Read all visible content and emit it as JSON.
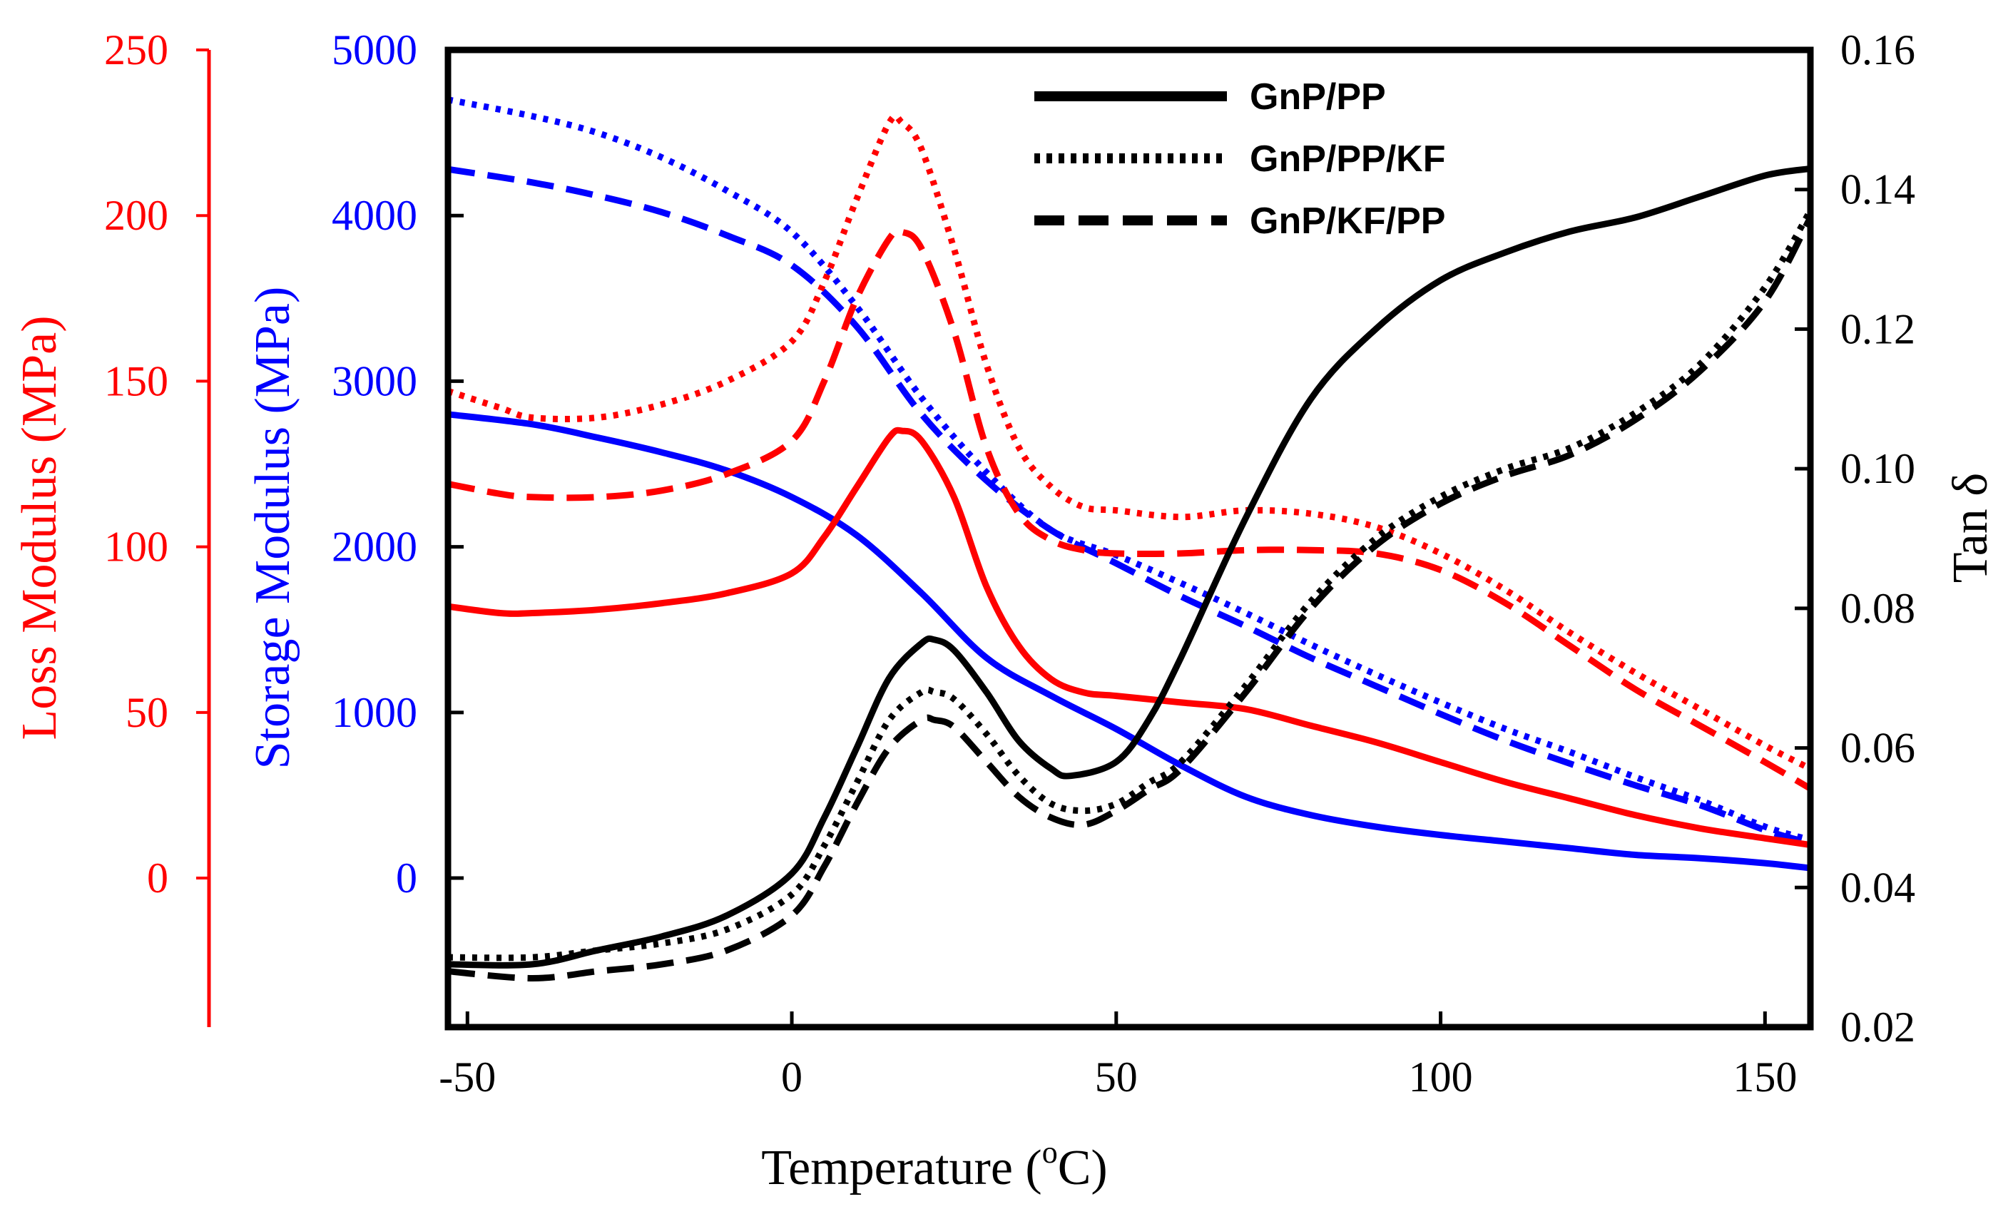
{
  "chart_data": {
    "type": "line",
    "xlabel": {
      "base": "Temperature (",
      "sup": "o",
      "unit": "C)"
    },
    "x_range": [
      -53,
      157
    ],
    "x_ticks": [
      -50,
      0,
      50,
      100,
      150
    ],
    "x_tick_labels": [
      "-50",
      "0",
      "50",
      "100",
      "150"
    ],
    "axes": {
      "loss": {
        "label": "Loss Modulus (MPa)",
        "color": "#ff0000",
        "range": [
          -45,
          250
        ],
        "ticks": [
          0,
          50,
          100,
          150,
          200,
          250
        ],
        "tick_labels": [
          "0",
          "50",
          "100",
          "150",
          "200",
          "250"
        ]
      },
      "storage": {
        "label": "Storage Modulus (MPa)",
        "color": "#0000ff",
        "range": [
          -900,
          5000
        ],
        "ticks": [
          0,
          1000,
          2000,
          3000,
          4000,
          5000
        ],
        "tick_labels": [
          "0",
          "1000",
          "2000",
          "3000",
          "4000",
          "5000"
        ]
      },
      "tan": {
        "label": "Tan δ",
        "color": "#000000",
        "range": [
          0.02,
          0.16
        ],
        "ticks": [
          0.02,
          0.04,
          0.06,
          0.08,
          0.1,
          0.12,
          0.14,
          0.16
        ],
        "tick_labels": [
          "0.02",
          "0.04",
          "0.06",
          "0.08",
          "0.10",
          "0.12",
          "0.14",
          "0.16"
        ]
      }
    },
    "legend": {
      "placement": "top-center",
      "entries": [
        {
          "name": "GnP/PP",
          "style": "solid"
        },
        {
          "name": "GnP/PP/KF",
          "style": "dotted"
        },
        {
          "name": "GnP/KF/PP",
          "style": "dashed"
        }
      ]
    },
    "series": [
      {
        "name": "GnP/PP",
        "axis": "storage",
        "color": "#0000ff",
        "style": "solid",
        "x": [
          -53,
          -40,
          -30,
          -20,
          -10,
          0,
          10,
          20,
          30,
          40,
          50,
          60,
          70,
          80,
          90,
          100,
          110,
          120,
          130,
          140,
          150,
          157
        ],
        "y": [
          2800,
          2740,
          2660,
          2570,
          2460,
          2300,
          2070,
          1720,
          1330,
          1100,
          900,
          680,
          490,
          380,
          310,
          260,
          220,
          180,
          140,
          120,
          90,
          60
        ]
      },
      {
        "name": "GnP/PP/KF",
        "axis": "storage",
        "color": "#0000ff",
        "style": "dotted",
        "x": [
          -53,
          -40,
          -30,
          -20,
          -10,
          0,
          10,
          20,
          30,
          40,
          50,
          60,
          70,
          80,
          90,
          100,
          110,
          120,
          130,
          140,
          150,
          157
        ],
        "y": [
          4700,
          4600,
          4500,
          4350,
          4150,
          3900,
          3450,
          2900,
          2450,
          2100,
          1950,
          1780,
          1600,
          1410,
          1230,
          1060,
          900,
          760,
          610,
          470,
          310,
          230
        ]
      },
      {
        "name": "GnP/KF/PP",
        "axis": "storage",
        "color": "#0000ff",
        "style": "dashed",
        "x": [
          -53,
          -40,
          -30,
          -20,
          -10,
          0,
          10,
          20,
          30,
          40,
          50,
          60,
          70,
          80,
          90,
          100,
          110,
          120,
          130,
          140,
          150,
          157
        ],
        "y": [
          4280,
          4200,
          4120,
          4020,
          3880,
          3700,
          3330,
          2800,
          2400,
          2100,
          1900,
          1700,
          1520,
          1330,
          1160,
          990,
          830,
          690,
          560,
          440,
          290,
          210
        ]
      },
      {
        "name": "GnP/PP",
        "axis": "loss",
        "color": "#ff0000",
        "style": "solid",
        "x": [
          -53,
          -45,
          -40,
          -30,
          -20,
          -10,
          0,
          5,
          10,
          15,
          17,
          20,
          25,
          30,
          35,
          40,
          45,
          50,
          60,
          70,
          80,
          90,
          100,
          110,
          120,
          130,
          140,
          150,
          157
        ],
        "y": [
          82,
          80,
          80,
          81,
          83,
          86,
          92,
          103,
          118,
          133,
          135,
          132,
          115,
          88,
          70,
          60,
          56,
          55,
          53,
          51,
          46,
          41,
          35,
          29,
          24,
          19,
          15,
          12,
          10
        ]
      },
      {
        "name": "GnP/PP/KF",
        "axis": "loss",
        "color": "#ff0000",
        "style": "dotted",
        "x": [
          -53,
          -45,
          -40,
          -30,
          -20,
          -10,
          0,
          5,
          10,
          15,
          17,
          20,
          25,
          30,
          35,
          40,
          45,
          50,
          60,
          70,
          80,
          90,
          100,
          110,
          120,
          130,
          140,
          150,
          157
        ],
        "y": [
          147,
          142,
          139,
          139,
          143,
          150,
          162,
          180,
          205,
          228,
          228,
          220,
          190,
          155,
          130,
          118,
          112,
          111,
          109,
          111,
          110,
          106,
          98,
          87,
          74,
          62,
          51,
          40,
          33
        ]
      },
      {
        "name": "GnP/KF/PP",
        "axis": "loss",
        "color": "#ff0000",
        "style": "dashed",
        "x": [
          -53,
          -45,
          -40,
          -30,
          -20,
          -10,
          0,
          5,
          10,
          15,
          17,
          20,
          25,
          30,
          35,
          40,
          45,
          50,
          60,
          70,
          80,
          90,
          100,
          110,
          120,
          130,
          140,
          150,
          157
        ],
        "y": [
          119,
          116,
          115,
          115,
          117,
          122,
          132,
          150,
          175,
          193,
          195,
          190,
          165,
          130,
          110,
          102,
          99,
          98,
          98,
          99,
          99,
          98,
          93,
          83,
          70,
          57,
          46,
          35,
          27
        ]
      },
      {
        "name": "GnP/PP",
        "axis": "tan",
        "color": "#000000",
        "style": "solid",
        "x": [
          -53,
          -40,
          -30,
          -20,
          -10,
          0,
          5,
          10,
          15,
          20,
          22,
          25,
          30,
          35,
          40,
          43,
          50,
          55,
          60,
          70,
          80,
          90,
          100,
          110,
          120,
          130,
          140,
          150,
          157
        ],
        "y": [
          0.029,
          0.029,
          0.031,
          0.033,
          0.036,
          0.042,
          0.05,
          0.06,
          0.07,
          0.075,
          0.0755,
          0.074,
          0.068,
          0.061,
          0.057,
          0.056,
          0.058,
          0.064,
          0.073,
          0.093,
          0.11,
          0.12,
          0.127,
          0.131,
          0.134,
          0.136,
          0.139,
          0.142,
          0.143
        ]
      },
      {
        "name": "GnP/PP/KF",
        "axis": "tan",
        "color": "#000000",
        "style": "dotted",
        "x": [
          -53,
          -40,
          -30,
          -20,
          -10,
          0,
          5,
          10,
          15,
          20,
          22,
          25,
          30,
          35,
          40,
          45,
          50,
          55,
          60,
          70,
          80,
          90,
          100,
          110,
          120,
          130,
          140,
          150,
          157
        ],
        "y": [
          0.03,
          0.03,
          0.031,
          0.032,
          0.034,
          0.039,
          0.046,
          0.055,
          0.064,
          0.068,
          0.068,
          0.067,
          0.062,
          0.056,
          0.052,
          0.051,
          0.052,
          0.055,
          0.058,
          0.069,
          0.081,
          0.09,
          0.096,
          0.1,
          0.103,
          0.108,
          0.115,
          0.126,
          0.137
        ]
      },
      {
        "name": "GnP/KF/PP",
        "axis": "tan",
        "color": "#000000",
        "style": "dashed",
        "x": [
          -53,
          -40,
          -30,
          -20,
          -10,
          0,
          5,
          10,
          15,
          20,
          22,
          25,
          30,
          35,
          40,
          45,
          50,
          55,
          60,
          70,
          80,
          90,
          100,
          110,
          120,
          130,
          140,
          150,
          157
        ],
        "y": [
          0.028,
          0.027,
          0.028,
          0.029,
          0.031,
          0.036,
          0.043,
          0.052,
          0.06,
          0.064,
          0.064,
          0.063,
          0.058,
          0.053,
          0.05,
          0.049,
          0.051,
          0.054,
          0.057,
          0.068,
          0.08,
          0.089,
          0.095,
          0.099,
          0.102,
          0.107,
          0.114,
          0.124,
          0.136
        ]
      }
    ]
  }
}
